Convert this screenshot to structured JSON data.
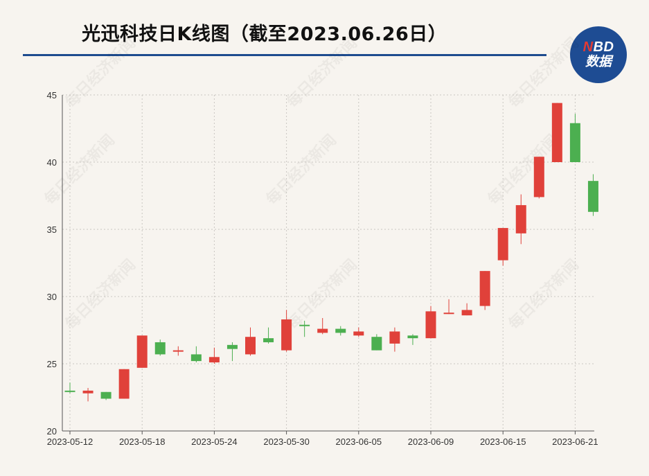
{
  "title": "光迅科技日K线图（截至2023.06.26日）",
  "logo": {
    "brand_n": "N",
    "brand_rest": "BD",
    "sub": "数据"
  },
  "watermark": "每日经济新闻",
  "colors": {
    "up": "#e0413a",
    "down": "#4caf50",
    "rule": "#1d4b8e",
    "grid": "#c9c6c1"
  },
  "chart_data": {
    "type": "candlestick",
    "title": "光迅科技日K线图（截至2023.06.26日）",
    "ylim": [
      20,
      45
    ],
    "yticks": [
      20,
      25,
      30,
      35,
      40,
      45
    ],
    "xtick_labels": [
      "2023-05-12",
      "2023-05-18",
      "2023-05-24",
      "2023-05-30",
      "2023-06-05",
      "2023-06-09",
      "2023-06-15",
      "2023-06-21"
    ],
    "xtick_indices": [
      0,
      4,
      8,
      12,
      16,
      20,
      24,
      28
    ],
    "grid": true,
    "candles": [
      {
        "open": 23.0,
        "close": 22.9,
        "high": 23.6,
        "low": 22.8
      },
      {
        "open": 22.8,
        "close": 23.0,
        "high": 23.2,
        "low": 22.2
      },
      {
        "open": 22.9,
        "close": 22.4,
        "high": 22.9,
        "low": 22.3
      },
      {
        "open": 22.4,
        "close": 24.6,
        "high": 24.6,
        "low": 22.4
      },
      {
        "open": 24.7,
        "close": 27.1,
        "high": 27.1,
        "low": 24.7
      },
      {
        "open": 26.6,
        "close": 25.7,
        "high": 26.8,
        "low": 25.6
      },
      {
        "open": 25.9,
        "close": 26.0,
        "high": 26.3,
        "low": 25.6
      },
      {
        "open": 25.7,
        "close": 25.2,
        "high": 26.3,
        "low": 25.1
      },
      {
        "open": 25.1,
        "close": 25.5,
        "high": 26.2,
        "low": 25.0
      },
      {
        "open": 26.4,
        "close": 26.1,
        "high": 26.6,
        "low": 25.2
      },
      {
        "open": 25.7,
        "close": 27.0,
        "high": 27.7,
        "low": 25.6
      },
      {
        "open": 26.9,
        "close": 26.6,
        "high": 27.7,
        "low": 26.5
      },
      {
        "open": 26.0,
        "close": 28.3,
        "high": 29.0,
        "low": 25.9
      },
      {
        "open": 27.9,
        "close": 27.8,
        "high": 28.2,
        "low": 27.0
      },
      {
        "open": 27.3,
        "close": 27.6,
        "high": 28.4,
        "low": 27.2
      },
      {
        "open": 27.6,
        "close": 27.3,
        "high": 27.8,
        "low": 27.1
      },
      {
        "open": 27.1,
        "close": 27.4,
        "high": 27.7,
        "low": 27.0
      },
      {
        "open": 27.0,
        "close": 26.0,
        "high": 27.2,
        "low": 26.0
      },
      {
        "open": 26.5,
        "close": 27.4,
        "high": 27.7,
        "low": 25.9
      },
      {
        "open": 27.1,
        "close": 26.9,
        "high": 27.2,
        "low": 26.4
      },
      {
        "open": 26.9,
        "close": 28.9,
        "high": 29.3,
        "low": 26.9
      },
      {
        "open": 28.8,
        "close": 28.8,
        "high": 29.8,
        "low": 28.7
      },
      {
        "open": 28.6,
        "close": 29.0,
        "high": 29.5,
        "low": 28.6
      },
      {
        "open": 29.3,
        "close": 31.9,
        "high": 31.9,
        "low": 29.0
      },
      {
        "open": 32.7,
        "close": 35.1,
        "high": 35.1,
        "low": 32.3
      },
      {
        "open": 34.7,
        "close": 36.8,
        "high": 37.6,
        "low": 33.9
      },
      {
        "open": 37.4,
        "close": 40.4,
        "high": 40.4,
        "low": 37.3
      },
      {
        "open": 40.0,
        "close": 44.4,
        "high": 44.4,
        "low": 40.0
      },
      {
        "open": 42.9,
        "close": 40.0,
        "high": 43.6,
        "low": 40.0
      },
      {
        "open": 38.6,
        "close": 36.3,
        "high": 39.1,
        "low": 36.0
      }
    ]
  }
}
